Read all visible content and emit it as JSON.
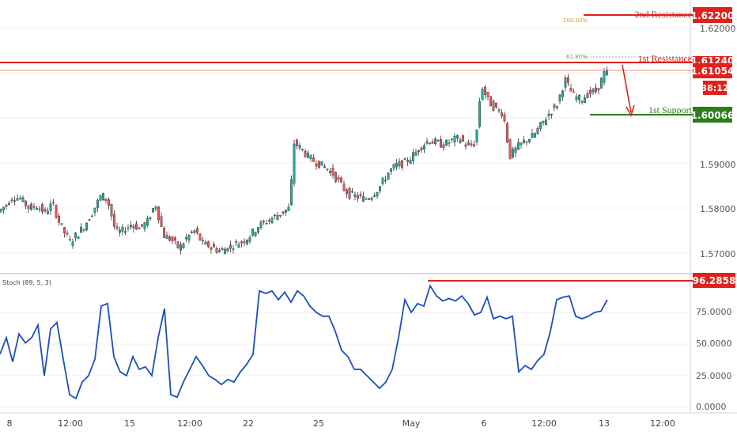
{
  "chart_data": [
    {
      "type": "candlestick",
      "ylim": [
        1.568,
        1.6235
      ],
      "yticks": [
        "1.62000",
        "1.59000",
        "1.58000",
        "1.57000"
      ],
      "price_tags": {
        "resistance2": "1.62200",
        "resistance1_partial": "1.61240",
        "current": "1.61054",
        "countdown": "38:12",
        "support1": "1.60066"
      },
      "levels": {
        "resistance2": {
          "label": "2nd Resistance",
          "value": 1.622
        },
        "resistance1": {
          "label": "1st Resistance",
          "value": 1.6124
        },
        "current": {
          "value": 1.61054
        },
        "support1": {
          "label": "1st Support",
          "value": 1.60066
        }
      },
      "fib_labels": {
        "f100": "100.00%",
        "f618": "61.80%"
      },
      "colors": {
        "up": "#26a69a",
        "down": "#ef5350",
        "resistance": "#ff0000",
        "support": "#2e7d1b",
        "fib100": "#d4a017",
        "fib618": "#4caf50"
      },
      "price_path": [
        [
          0,
          1.579
        ],
        [
          10,
          1.5805
        ],
        [
          20,
          1.5825
        ],
        [
          30,
          1.582
        ],
        [
          40,
          1.58
        ],
        [
          50,
          1.5805
        ],
        [
          60,
          1.579
        ],
        [
          70,
          1.581
        ],
        [
          80,
          1.576
        ],
        [
          92,
          1.5725
        ],
        [
          100,
          1.574
        ],
        [
          110,
          1.576
        ],
        [
          120,
          1.579
        ],
        [
          132,
          1.583
        ],
        [
          140,
          1.5815
        ],
        [
          150,
          1.5745
        ],
        [
          160,
          1.575
        ],
        [
          170,
          1.5765
        ],
        [
          180,
          1.5755
        ],
        [
          190,
          1.577
        ],
        [
          200,
          1.581
        ],
        [
          210,
          1.574
        ],
        [
          220,
          1.573
        ],
        [
          230,
          1.571
        ],
        [
          240,
          1.5735
        ],
        [
          250,
          1.575
        ],
        [
          260,
          1.572
        ],
        [
          270,
          1.5715
        ],
        [
          280,
          1.5705
        ],
        [
          290,
          1.571
        ],
        [
          300,
          1.572
        ],
        [
          310,
          1.5725
        ],
        [
          320,
          1.574
        ],
        [
          330,
          1.576
        ],
        [
          340,
          1.577
        ],
        [
          350,
          1.578
        ],
        [
          360,
          1.579
        ],
        [
          370,
          1.58
        ],
        [
          375,
          1.5945
        ],
        [
          385,
          1.593
        ],
        [
          395,
          1.591
        ],
        [
          405,
          1.59
        ],
        [
          415,
          1.589
        ],
        [
          425,
          1.5875
        ],
        [
          435,
          1.585
        ],
        [
          445,
          1.583
        ],
        [
          455,
          1.5825
        ],
        [
          465,
          1.582
        ],
        [
          475,
          1.583
        ],
        [
          485,
          1.585
        ],
        [
          495,
          1.588
        ],
        [
          505,
          1.5895
        ],
        [
          515,
          1.59
        ],
        [
          525,
          1.5915
        ],
        [
          535,
          1.5935
        ],
        [
          545,
          1.595
        ],
        [
          555,
          1.5945
        ],
        [
          565,
          1.594
        ],
        [
          575,
          1.595
        ],
        [
          585,
          1.5955
        ],
        [
          595,
          1.5935
        ],
        [
          605,
          1.5945
        ],
        [
          612,
          1.6075
        ],
        [
          620,
          1.604
        ],
        [
          630,
          1.602
        ],
        [
          640,
          1.601
        ],
        [
          648,
          1.5915
        ],
        [
          658,
          1.5935
        ],
        [
          668,
          1.595
        ],
        [
          678,
          1.596
        ],
        [
          688,
          1.5985
        ],
        [
          698,
          1.601
        ],
        [
          708,
          1.603
        ],
        [
          718,
          1.6085
        ],
        [
          728,
          1.605
        ],
        [
          738,
          1.604
        ],
        [
          748,
          1.6055
        ],
        [
          758,
          1.606
        ],
        [
          768,
          1.61
        ]
      ]
    },
    {
      "type": "line",
      "title": "Stoch (89, 5, 3)",
      "ylim": [
        0,
        100
      ],
      "yticks": [
        "75.0000",
        "50.0000",
        "25.0000",
        "0.0000"
      ],
      "current_value": 96.2858,
      "current_label": "96.2858",
      "series": [
        {
          "points": [
            [
              0,
              42
            ],
            [
              8,
              55
            ],
            [
              16,
              36
            ],
            [
              24,
              58
            ],
            [
              32,
              51
            ],
            [
              40,
              55
            ],
            [
              48,
              65
            ],
            [
              56,
              25
            ],
            [
              64,
              62
            ],
            [
              72,
              67
            ],
            [
              80,
              38
            ],
            [
              88,
              10
            ],
            [
              96,
              7
            ],
            [
              104,
              20
            ],
            [
              112,
              25
            ],
            [
              120,
              38
            ],
            [
              128,
              80
            ],
            [
              136,
              82
            ],
            [
              144,
              40
            ],
            [
              152,
              28
            ],
            [
              160,
              25
            ],
            [
              168,
              40
            ],
            [
              176,
              30
            ],
            [
              184,
              32
            ],
            [
              192,
              25
            ],
            [
              200,
              55
            ],
            [
              208,
              78
            ],
            [
              216,
              10
            ],
            [
              224,
              8
            ],
            [
              232,
              20
            ],
            [
              240,
              30
            ],
            [
              248,
              40
            ],
            [
              256,
              33
            ],
            [
              264,
              25
            ],
            [
              272,
              22
            ],
            [
              280,
              18
            ],
            [
              288,
              22
            ],
            [
              296,
              20
            ],
            [
              304,
              28
            ],
            [
              312,
              34
            ],
            [
              320,
              42
            ],
            [
              328,
              92
            ],
            [
              336,
              90
            ],
            [
              344,
              92
            ],
            [
              352,
              85
            ],
            [
              360,
              91
            ],
            [
              368,
              83
            ],
            [
              376,
              92
            ],
            [
              384,
              88
            ],
            [
              392,
              80
            ],
            [
              400,
              75
            ],
            [
              408,
              72
            ],
            [
              416,
              72
            ],
            [
              424,
              60
            ],
            [
              432,
              45
            ],
            [
              440,
              40
            ],
            [
              448,
              30
            ],
            [
              456,
              30
            ],
            [
              464,
              25
            ],
            [
              472,
              20
            ],
            [
              480,
              15
            ],
            [
              488,
              20
            ],
            [
              496,
              30
            ],
            [
              504,
              55
            ],
            [
              512,
              85
            ],
            [
              520,
              75
            ],
            [
              528,
              82
            ],
            [
              536,
              80
            ],
            [
              544,
              96
            ],
            [
              552,
              88
            ],
            [
              560,
              84
            ],
            [
              568,
              86
            ],
            [
              576,
              84
            ],
            [
              584,
              88
            ],
            [
              592,
              82
            ],
            [
              600,
              73
            ],
            [
              608,
              75
            ],
            [
              616,
              87
            ],
            [
              624,
              70
            ],
            [
              632,
              72
            ],
            [
              640,
              70
            ],
            [
              648,
              72
            ],
            [
              656,
              28
            ],
            [
              664,
              33
            ],
            [
              672,
              30
            ],
            [
              680,
              37
            ],
            [
              688,
              42
            ],
            [
              696,
              60
            ],
            [
              704,
              85
            ],
            [
              712,
              87
            ],
            [
              720,
              88
            ],
            [
              728,
              72
            ],
            [
              736,
              70
            ],
            [
              744,
              72
            ],
            [
              752,
              75
            ],
            [
              760,
              76
            ],
            [
              768,
              85
            ]
          ]
        }
      ]
    }
  ],
  "xaxis": {
    "ticks": [
      "8",
      "12:00",
      "15",
      "12:00",
      "22",
      "25",
      "May",
      "6",
      "12:00",
      "13",
      "12:00"
    ]
  }
}
